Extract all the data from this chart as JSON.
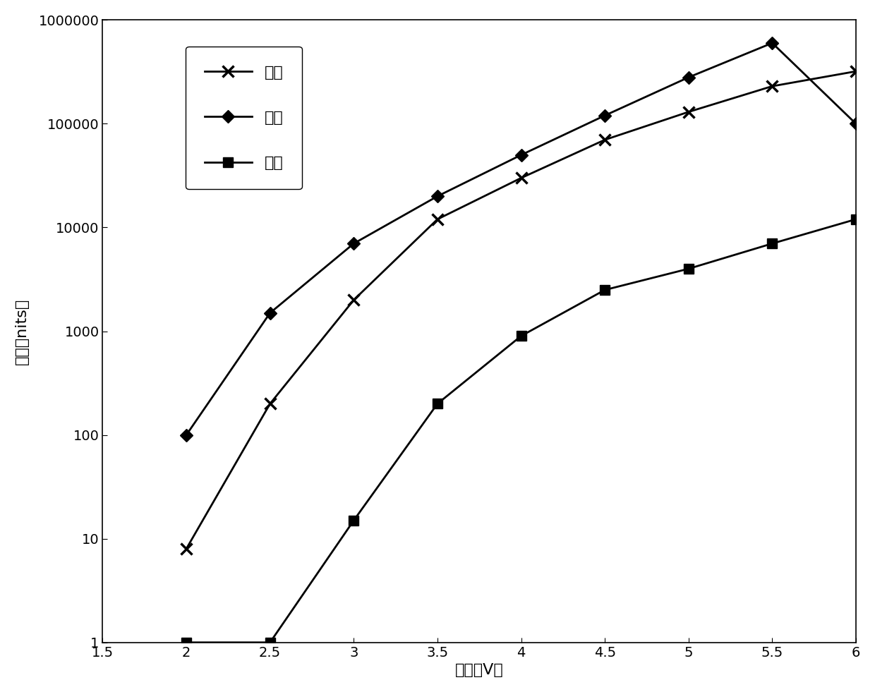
{
  "red_x": [
    2.0,
    2.5,
    3.0,
    3.5,
    4.0,
    4.5,
    5.0,
    5.5,
    6.0
  ],
  "red_y": [
    8,
    200,
    2000,
    12000,
    30000,
    70000,
    130000,
    230000,
    320000
  ],
  "green_x": [
    2.0,
    2.5,
    3.0,
    3.5,
    4.0,
    4.5,
    5.0,
    5.5,
    6.0
  ],
  "green_y": [
    100,
    1500,
    7000,
    20000,
    50000,
    120000,
    280000,
    600000,
    100000
  ],
  "blue_x": [
    2.0,
    2.5,
    3.0,
    3.5,
    4.0,
    4.5,
    5.0,
    5.5,
    6.0
  ],
  "blue_y": [
    1,
    1,
    15,
    200,
    900,
    2500,
    4000,
    7000,
    12000
  ],
  "red_label": "红色",
  "green_label": "绿色",
  "blue_label": "蓝色",
  "xlabel": "电压（V）",
  "ylabel": "亮度（nits）",
  "xlim": [
    1.5,
    6.0
  ],
  "ylim": [
    1,
    1000000
  ],
  "xticks": [
    1.5,
    2.0,
    2.5,
    3.0,
    3.5,
    4.0,
    4.5,
    5.0,
    5.5,
    6.0
  ],
  "xtick_labels": [
    "1.5",
    "2",
    "2.5",
    "3",
    "3.5",
    "4",
    "4.5",
    "5",
    "5.5",
    "6"
  ],
  "yticks": [
    1,
    10,
    100,
    1000,
    10000,
    100000,
    1000000
  ],
  "ytick_labels": [
    "1",
    "10",
    "100",
    "1000",
    "10000",
    "100000",
    "1000000"
  ],
  "line_color": "#000000",
  "background_color": "#ffffff",
  "legend_fontsize": 16,
  "axis_fontsize": 16,
  "tick_fontsize": 14
}
